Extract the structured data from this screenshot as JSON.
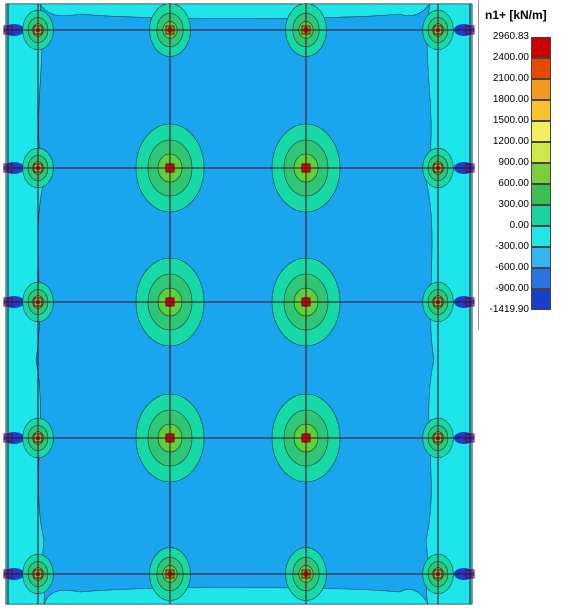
{
  "legend": {
    "title": "n1+ [kN/m]",
    "levels": [
      "2960.83",
      "2400.00",
      "2100.00",
      "1800.00",
      "1500.00",
      "1200.00",
      "900.00",
      "600.00",
      "300.00",
      "0.00",
      "-300.00",
      "-600.00",
      "-900.00",
      "-1419.90"
    ],
    "colors": [
      "#cc0000",
      "#e64a00",
      "#f39a1e",
      "#f6c32a",
      "#f3ef61",
      "#cde84a",
      "#7ccf3a",
      "#39c050",
      "#18d49c",
      "#22e6e4",
      "#35b4f2",
      "#2b74e2",
      "#1b3ec8"
    ]
  },
  "plot": {
    "background_color": "#1aa6ef",
    "edge_color": "#1ce6ea",
    "grid_color": "#5a0010",
    "hotspot_colors": [
      "#17d9a6",
      "#2fc675",
      "#5bd13c",
      "#c21010"
    ]
  }
}
